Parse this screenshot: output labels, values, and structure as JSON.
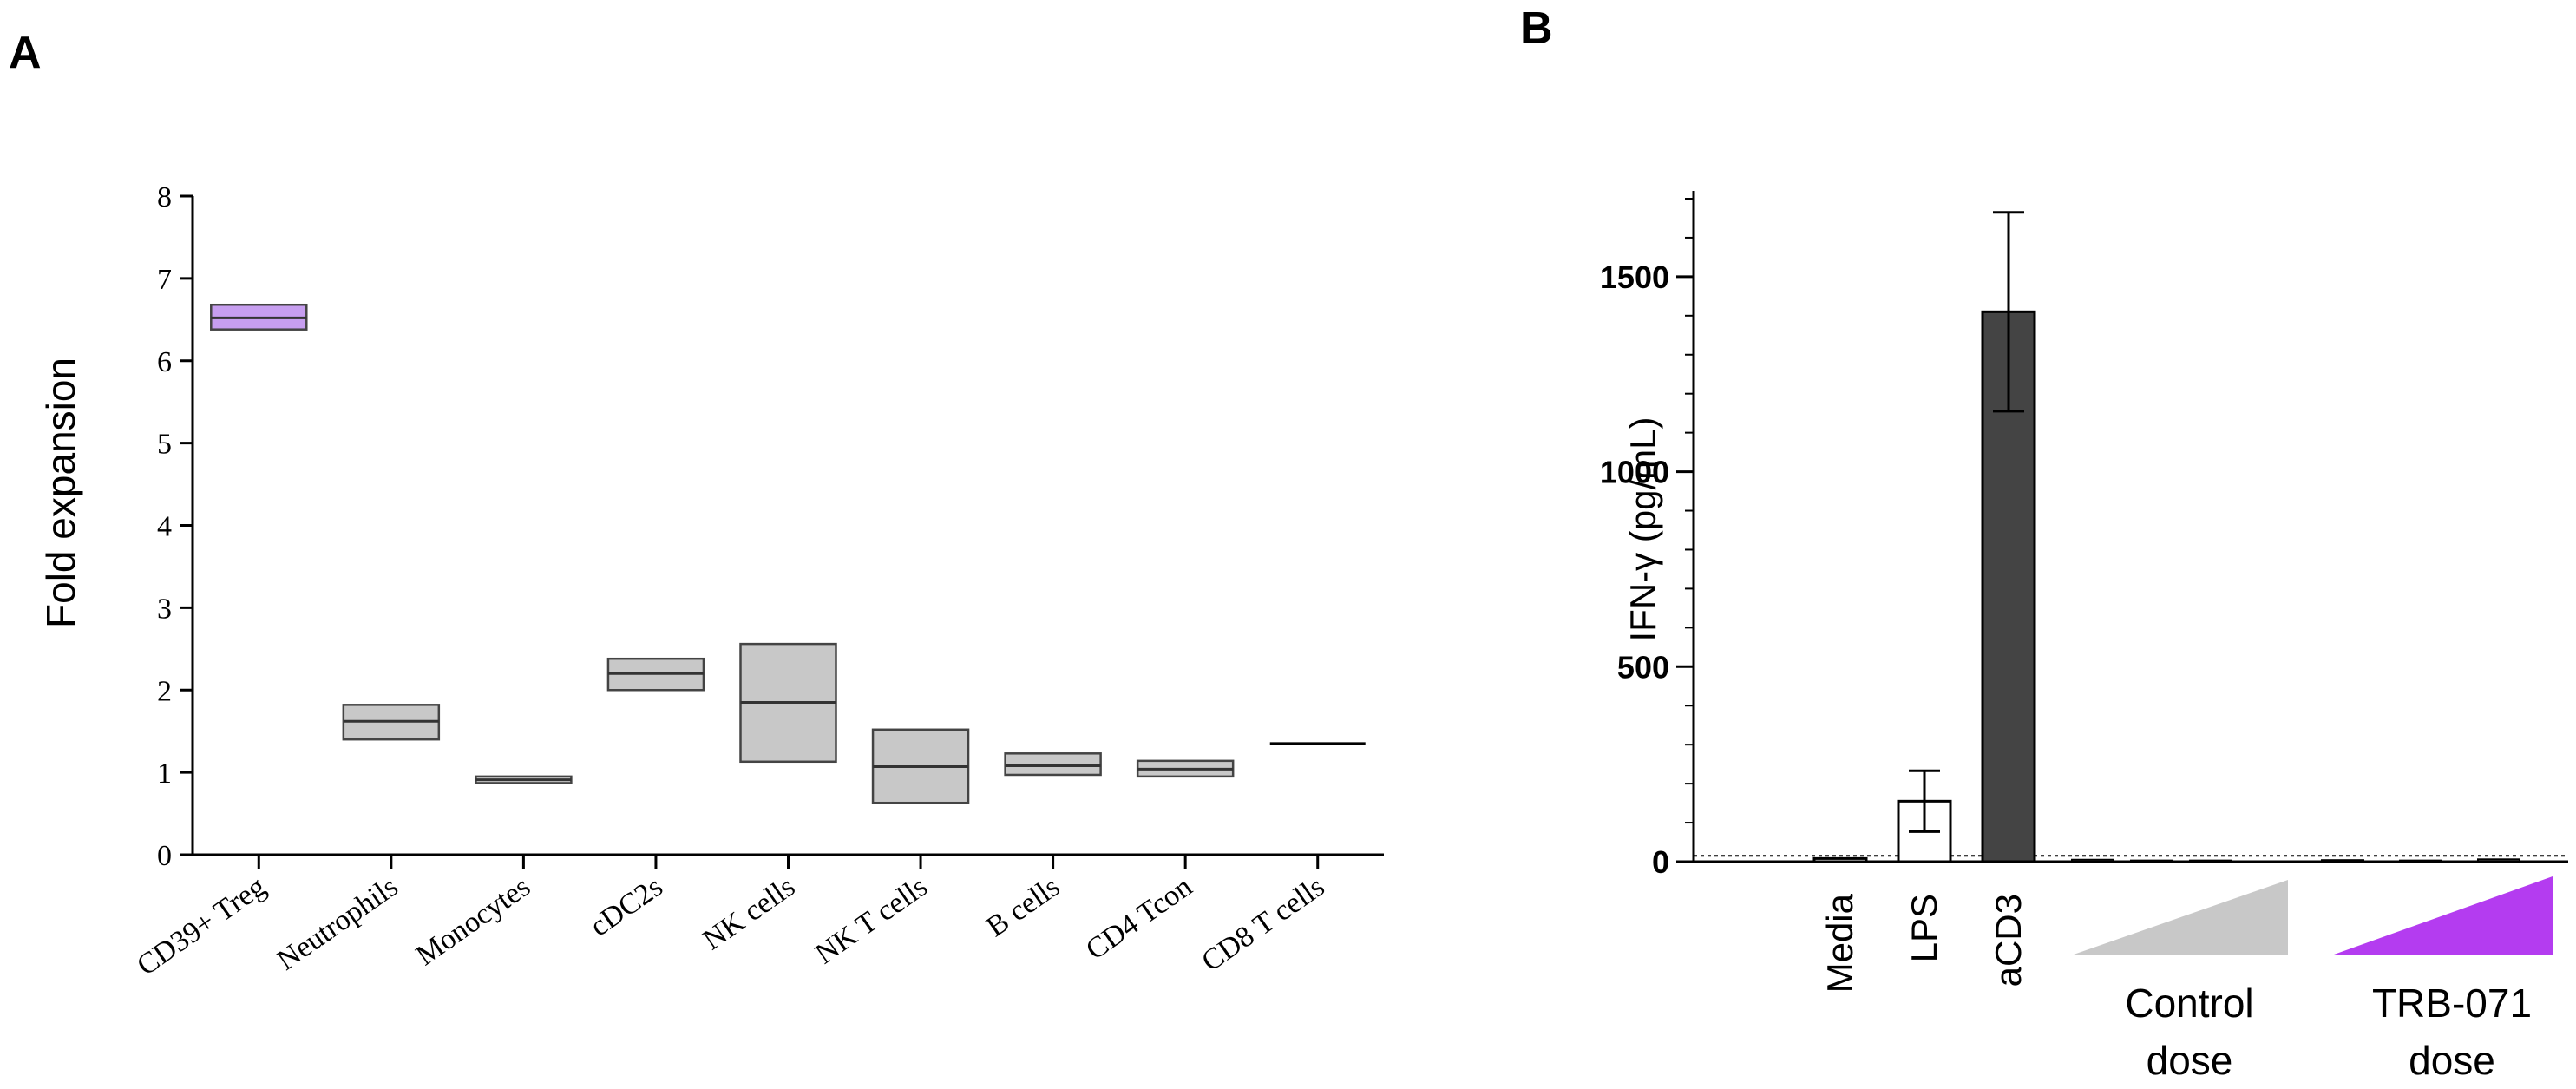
{
  "panels": {
    "a_label": "A",
    "b_label": "B"
  },
  "chart_data": [
    {
      "type": "box",
      "ylabel": "Fold expansion",
      "xlabel": "",
      "ylim": [
        0,
        8
      ],
      "yticks": [
        0,
        1,
        2,
        3,
        4,
        5,
        6,
        7,
        8
      ],
      "grid": false,
      "categories": [
        "CD39+ Treg",
        "Neutrophils",
        "Monocytes",
        "cDC2s",
        "NK cells",
        "NK T cells",
        "B cells",
        "CD4 Tcon",
        "CD8 T cells"
      ],
      "boxes": [
        {
          "low": 6.38,
          "median": 6.52,
          "high": 6.68,
          "color": "#c79ef0"
        },
        {
          "low": 1.4,
          "median": 1.62,
          "high": 1.82,
          "color": "#c8c8c8"
        },
        {
          "low": 0.87,
          "median": 0.91,
          "high": 0.95,
          "color": "#c8c8c8"
        },
        {
          "low": 2.0,
          "median": 2.2,
          "high": 2.38,
          "color": "#c8c8c8"
        },
        {
          "low": 1.13,
          "median": 1.85,
          "high": 2.56,
          "color": "#c8c8c8"
        },
        {
          "low": 0.63,
          "median": 1.07,
          "high": 1.52,
          "color": "#c8c8c8"
        },
        {
          "low": 0.97,
          "median": 1.08,
          "high": 1.23,
          "color": "#c8c8c8"
        },
        {
          "low": 0.95,
          "median": 1.04,
          "high": 1.14,
          "color": "#c8c8c8"
        },
        {
          "low": 1.35,
          "median": 1.35,
          "high": 1.35,
          "color": "#c8c8c8"
        }
      ]
    },
    {
      "type": "bar",
      "ylabel": "IFN-γ (pg/mL)",
      "xlabel": "",
      "ylim": [
        0,
        1720
      ],
      "yticks": [
        0,
        500,
        1000,
        1500
      ],
      "grid": false,
      "reference_line": 15,
      "categories": [
        "Media",
        "LPS",
        "aCD3"
      ],
      "series": [
        {
          "values": [
            8,
            155,
            1410
          ],
          "errors": [
            5,
            78,
            255
          ],
          "colors": [
            "#ffffff",
            "#ffffff",
            "#444444"
          ]
        }
      ],
      "dose_groups": [
        {
          "label_line1": "Control",
          "label_line2": "dose",
          "values": [
            5,
            3,
            3
          ],
          "color": "#c8c8c8"
        },
        {
          "label_line1": "TRB-071",
          "label_line2": "dose",
          "values": [
            4,
            3,
            6
          ],
          "color": "#b43cf0"
        }
      ]
    }
  ]
}
